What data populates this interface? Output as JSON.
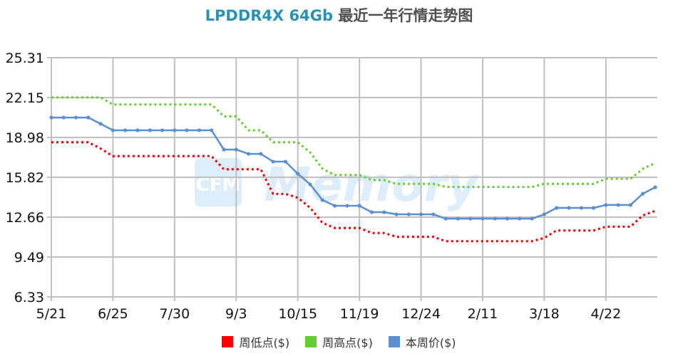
{
  "title": {
    "brand": "LPDDR4X 64Gb",
    "rest": "最近一年行情走势图"
  },
  "watermark": {
    "logo": "CFM",
    "text": "Memory"
  },
  "colors": {
    "low": "#e8000b",
    "high": "#66cc33",
    "price": "#5b8fcf",
    "grid": "#c0c0c0",
    "watermark": "#cfe6f7"
  },
  "legend": [
    {
      "label": "周低点($)",
      "color": "#ff0000"
    },
    {
      "label": "周高点($)",
      "color": "#66cc33"
    },
    {
      "label": "本周价($)",
      "color": "#5b8fcf"
    }
  ],
  "chart_data": {
    "type": "line",
    "title": "LPDDR4X 64Gb 最近一年行情走势图",
    "xlabel": "",
    "ylabel": "",
    "ylim": [
      6.33,
      25.31
    ],
    "yticks": [
      6.33,
      9.49,
      12.66,
      15.82,
      18.98,
      22.15,
      25.31
    ],
    "xticks": [
      {
        "label": "5/21",
        "index": 0
      },
      {
        "label": "6/25",
        "index": 5
      },
      {
        "label": "7/30",
        "index": 10
      },
      {
        "label": "9/3",
        "index": 15
      },
      {
        "label": "10/15",
        "index": 20
      },
      {
        "label": "11/19",
        "index": 25
      },
      {
        "label": "12/24",
        "index": 30
      },
      {
        "label": "2/11",
        "index": 35
      },
      {
        "label": "3/18",
        "index": 40
      },
      {
        "label": "4/22",
        "index": 45
      }
    ],
    "grid": true,
    "legend_position": "bottom",
    "point_count": 50,
    "series": [
      {
        "name": "周低点($)",
        "style": "dotted",
        "values": [
          18.6,
          18.6,
          18.6,
          18.6,
          18.1,
          17.5,
          17.5,
          17.5,
          17.5,
          17.5,
          17.5,
          17.5,
          17.5,
          17.5,
          16.45,
          16.45,
          16.45,
          16.45,
          14.5,
          14.5,
          14.2,
          13.4,
          12.2,
          11.8,
          11.8,
          11.8,
          11.4,
          11.4,
          11.1,
          11.1,
          11.1,
          11.1,
          10.75,
          10.75,
          10.75,
          10.75,
          10.75,
          10.75,
          10.75,
          10.75,
          11.0,
          11.6,
          11.6,
          11.6,
          11.6,
          11.9,
          11.9,
          11.9,
          12.8,
          13.15
        ]
      },
      {
        "name": "周高点($)",
        "style": "dotted",
        "values": [
          22.15,
          22.15,
          22.15,
          22.15,
          22.15,
          21.6,
          21.6,
          21.6,
          21.6,
          21.6,
          21.6,
          21.6,
          21.6,
          21.6,
          20.65,
          20.65,
          19.55,
          19.55,
          18.6,
          18.6,
          18.6,
          17.8,
          16.5,
          16.0,
          16.0,
          16.0,
          15.6,
          15.6,
          15.3,
          15.3,
          15.3,
          15.3,
          15.05,
          15.05,
          15.05,
          15.05,
          15.05,
          15.05,
          15.05,
          15.05,
          15.3,
          15.3,
          15.3,
          15.3,
          15.3,
          15.7,
          15.7,
          15.7,
          16.5,
          16.95
        ]
      },
      {
        "name": "本周价($)",
        "style": "solid",
        "values": [
          20.56,
          20.56,
          20.56,
          20.56,
          20.06,
          19.55,
          19.55,
          19.55,
          19.55,
          19.55,
          19.55,
          19.55,
          19.55,
          19.55,
          18.02,
          18.02,
          17.68,
          17.68,
          17.06,
          17.06,
          16.1,
          15.26,
          14.01,
          13.56,
          13.56,
          13.56,
          13.05,
          13.05,
          12.88,
          12.88,
          12.88,
          12.88,
          12.54,
          12.54,
          12.54,
          12.54,
          12.54,
          12.54,
          12.54,
          12.54,
          12.88,
          13.39,
          13.39,
          13.39,
          13.39,
          13.62,
          13.62,
          13.62,
          14.52,
          15.03
        ]
      }
    ]
  }
}
